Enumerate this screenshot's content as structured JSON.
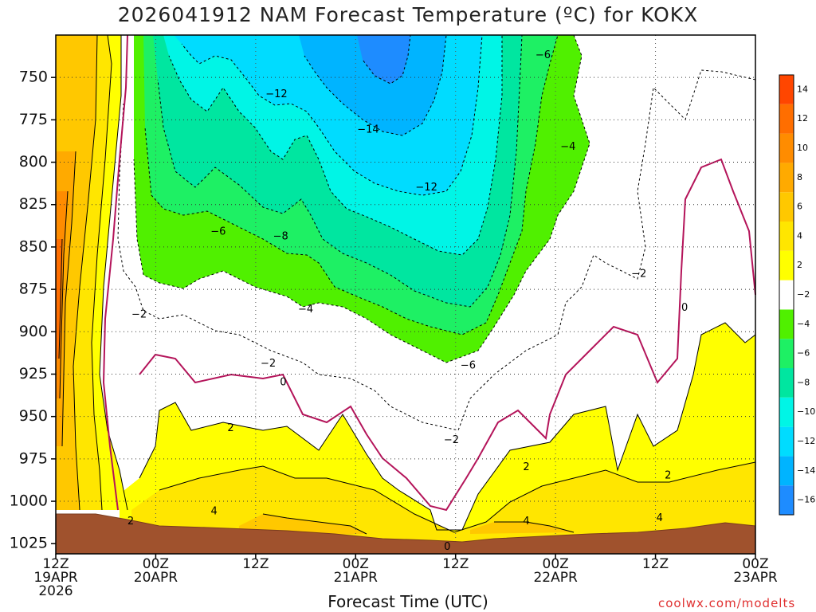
{
  "chart_data": {
    "type": "heatmap",
    "title": "2026041912 NAM Forecast Temperature (ºC) for KOKX",
    "xlabel": "Forecast Time (UTC)",
    "ylabel": "",
    "credit": "coolwx.com/modelts",
    "y_axis": {
      "ticks": [
        750,
        775,
        800,
        825,
        850,
        875,
        900,
        925,
        950,
        975,
        1000,
        1025
      ],
      "unit": "hPa",
      "inverted": true
    },
    "x_axis": {
      "ticks": [
        {
          "hour": 0,
          "lines": [
            "12Z",
            "19APR",
            "2026"
          ]
        },
        {
          "hour": 12,
          "lines": [
            "00Z",
            "20APR"
          ]
        },
        {
          "hour": 24,
          "lines": [
            "12Z"
          ]
        },
        {
          "hour": 36,
          "lines": [
            "00Z",
            "21APR"
          ]
        },
        {
          "hour": 48,
          "lines": [
            "12Z"
          ]
        },
        {
          "hour": 60,
          "lines": [
            "00Z",
            "22APR"
          ]
        },
        {
          "hour": 72,
          "lines": [
            "12Z"
          ]
        },
        {
          "hour": 84,
          "lines": [
            "00Z",
            "23APR"
          ]
        }
      ],
      "range_hours": [
        0,
        84
      ]
    },
    "colorbar": {
      "levels": [
        -16,
        -14,
        -12,
        -10,
        -8,
        -6,
        -4,
        -2,
        2,
        4,
        6,
        8,
        10,
        12,
        14
      ],
      "colors": [
        "#1e8cff",
        "#00b4ff",
        "#00dcff",
        "#00f5e6",
        "#00e6a0",
        "#1ef064",
        "#50f000",
        "#ffffff",
        "#ffff00",
        "#ffe600",
        "#ffc800",
        "#ffaa00",
        "#ff8c00",
        "#ff6e00",
        "#ff4600"
      ]
    },
    "grid": true,
    "contour_labels": [
      {
        "text": "−12",
        "hour": 26.5,
        "p": 760
      },
      {
        "text": "−14",
        "hour": 37.5,
        "p": 781
      },
      {
        "text": "−12",
        "hour": 44.5,
        "p": 815
      },
      {
        "text": "−6",
        "hour": 58.5,
        "p": 737
      },
      {
        "text": "−4",
        "hour": 61.5,
        "p": 791
      },
      {
        "text": "−6",
        "hour": 19.5,
        "p": 841
      },
      {
        "text": "−8",
        "hour": 27.0,
        "p": 844
      },
      {
        "text": "−2",
        "hour": 10.0,
        "p": 890
      },
      {
        "text": "−4",
        "hour": 30.0,
        "p": 887
      },
      {
        "text": "−2",
        "hour": 25.5,
        "p": 919
      },
      {
        "text": "−6",
        "hour": 49.5,
        "p": 920
      },
      {
        "text": "−2",
        "hour": 70.0,
        "p": 866
      },
      {
        "text": "0",
        "hour": 75.5,
        "p": 886
      },
      {
        "text": "0",
        "hour": 27.3,
        "p": 930
      },
      {
        "text": "2",
        "hour": 21.0,
        "p": 957
      },
      {
        "text": "−2",
        "hour": 47.5,
        "p": 964
      },
      {
        "text": "2",
        "hour": 56.5,
        "p": 980
      },
      {
        "text": "2",
        "hour": 73.5,
        "p": 985
      },
      {
        "text": "2",
        "hour": 9.0,
        "p": 1012
      },
      {
        "text": "4",
        "hour": 19.0,
        "p": 1006
      },
      {
        "text": "4",
        "hour": 56.5,
        "p": 1012
      },
      {
        "text": "4",
        "hour": 72.5,
        "p": 1010
      },
      {
        "text": "0",
        "hour": 47.0,
        "p": 1027
      }
    ]
  }
}
